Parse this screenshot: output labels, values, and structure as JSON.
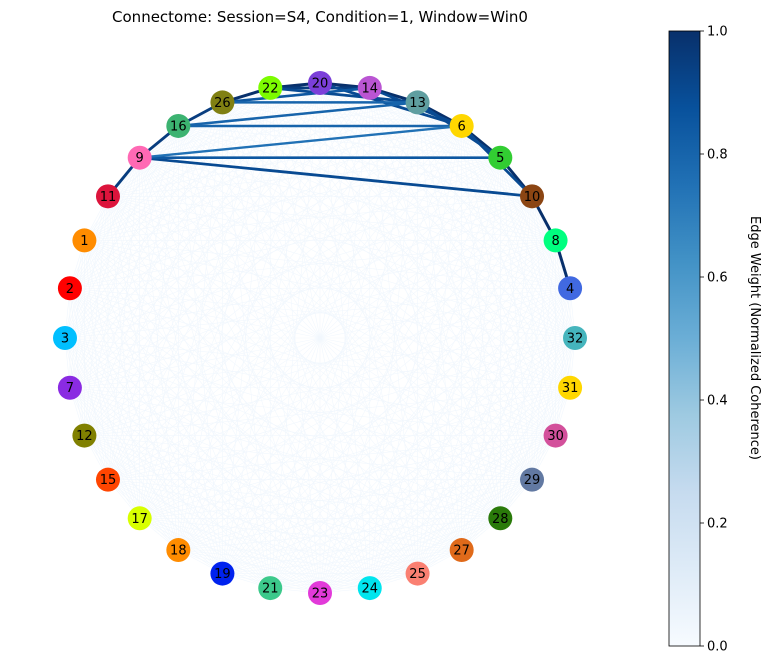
{
  "chart_data": {
    "type": "network",
    "title": "Connectome: Session=S4, Condition=1, Window=Win0",
    "layout": "circular",
    "nodes": [
      {
        "id": "1",
        "color": "#ff8c00"
      },
      {
        "id": "2",
        "color": "#ff0000"
      },
      {
        "id": "3",
        "color": "#00bfff"
      },
      {
        "id": "7",
        "color": "#8a2be2"
      },
      {
        "id": "12",
        "color": "#808000"
      },
      {
        "id": "15",
        "color": "#ff4500"
      },
      {
        "id": "17",
        "color": "#d8ff00"
      },
      {
        "id": "18",
        "color": "#ff8c00"
      },
      {
        "id": "19",
        "color": "#0022ee"
      },
      {
        "id": "21",
        "color": "#3cc98b"
      },
      {
        "id": "23",
        "color": "#e23ad9"
      },
      {
        "id": "24",
        "color": "#00e5ee"
      },
      {
        "id": "25",
        "color": "#fa8072"
      },
      {
        "id": "27",
        "color": "#e06a1a"
      },
      {
        "id": "28",
        "color": "#2a7a0a"
      },
      {
        "id": "29",
        "color": "#6279a2"
      },
      {
        "id": "30",
        "color": "#d3509b"
      },
      {
        "id": "31",
        "color": "#ffd700"
      },
      {
        "id": "32",
        "color": "#45b5bd"
      },
      {
        "id": "4",
        "color": "#4169e1"
      },
      {
        "id": "8",
        "color": "#00ff7f"
      },
      {
        "id": "10",
        "color": "#8b4513"
      },
      {
        "id": "5",
        "color": "#32cd32"
      },
      {
        "id": "6",
        "color": "#ffd700"
      },
      {
        "id": "13",
        "color": "#5f9ea0"
      },
      {
        "id": "14",
        "color": "#ba55d3"
      },
      {
        "id": "20",
        "color": "#7b3fd9"
      },
      {
        "id": "22",
        "color": "#7cfc00"
      },
      {
        "id": "26",
        "color": "#808012"
      },
      {
        "id": "16",
        "color": "#3cb371"
      },
      {
        "id": "9",
        "color": "#ff69b4"
      },
      {
        "id": "11",
        "color": "#dc143c"
      }
    ],
    "strong_edges": [
      {
        "source": "22",
        "target": "20",
        "weight": 1.0
      },
      {
        "source": "26",
        "target": "22",
        "weight": 1.0
      },
      {
        "source": "20",
        "target": "14",
        "weight": 1.0
      },
      {
        "source": "22",
        "target": "14",
        "weight": 0.95
      },
      {
        "source": "14",
        "target": "13",
        "weight": 1.0
      },
      {
        "source": "13",
        "target": "6",
        "weight": 1.0
      },
      {
        "source": "6",
        "target": "5",
        "weight": 1.0
      },
      {
        "source": "5",
        "target": "10",
        "weight": 1.0
      },
      {
        "source": "10",
        "target": "8",
        "weight": 1.0
      },
      {
        "source": "8",
        "target": "4",
        "weight": 1.0
      },
      {
        "source": "16",
        "target": "26",
        "weight": 0.95
      },
      {
        "source": "9",
        "target": "16",
        "weight": 0.95
      },
      {
        "source": "11",
        "target": "9",
        "weight": 0.95
      },
      {
        "source": "22",
        "target": "13",
        "weight": 0.9
      },
      {
        "source": "20",
        "target": "6",
        "weight": 0.9
      },
      {
        "source": "14",
        "target": "6",
        "weight": 0.9
      },
      {
        "source": "13",
        "target": "5",
        "weight": 0.9
      },
      {
        "source": "6",
        "target": "10",
        "weight": 0.9
      },
      {
        "source": "26",
        "target": "14",
        "weight": 0.85
      },
      {
        "source": "9",
        "target": "10",
        "weight": 0.9
      },
      {
        "source": "9",
        "target": "5",
        "weight": 0.85
      },
      {
        "source": "16",
        "target": "13",
        "weight": 0.8
      },
      {
        "source": "16",
        "target": "6",
        "weight": 0.8
      },
      {
        "source": "26",
        "target": "13",
        "weight": 0.8
      },
      {
        "source": "9",
        "target": "6",
        "weight": 0.75
      }
    ],
    "background_edge_weight": 0.03,
    "colorbar": {
      "label": "Edge Weight (Normalized Coherence)",
      "range": [
        0.0,
        1.0
      ],
      "ticks": [
        "0.0",
        "0.2",
        "0.4",
        "0.6",
        "0.8",
        "1.0"
      ],
      "colormap": "Blues",
      "placement": "right"
    }
  }
}
